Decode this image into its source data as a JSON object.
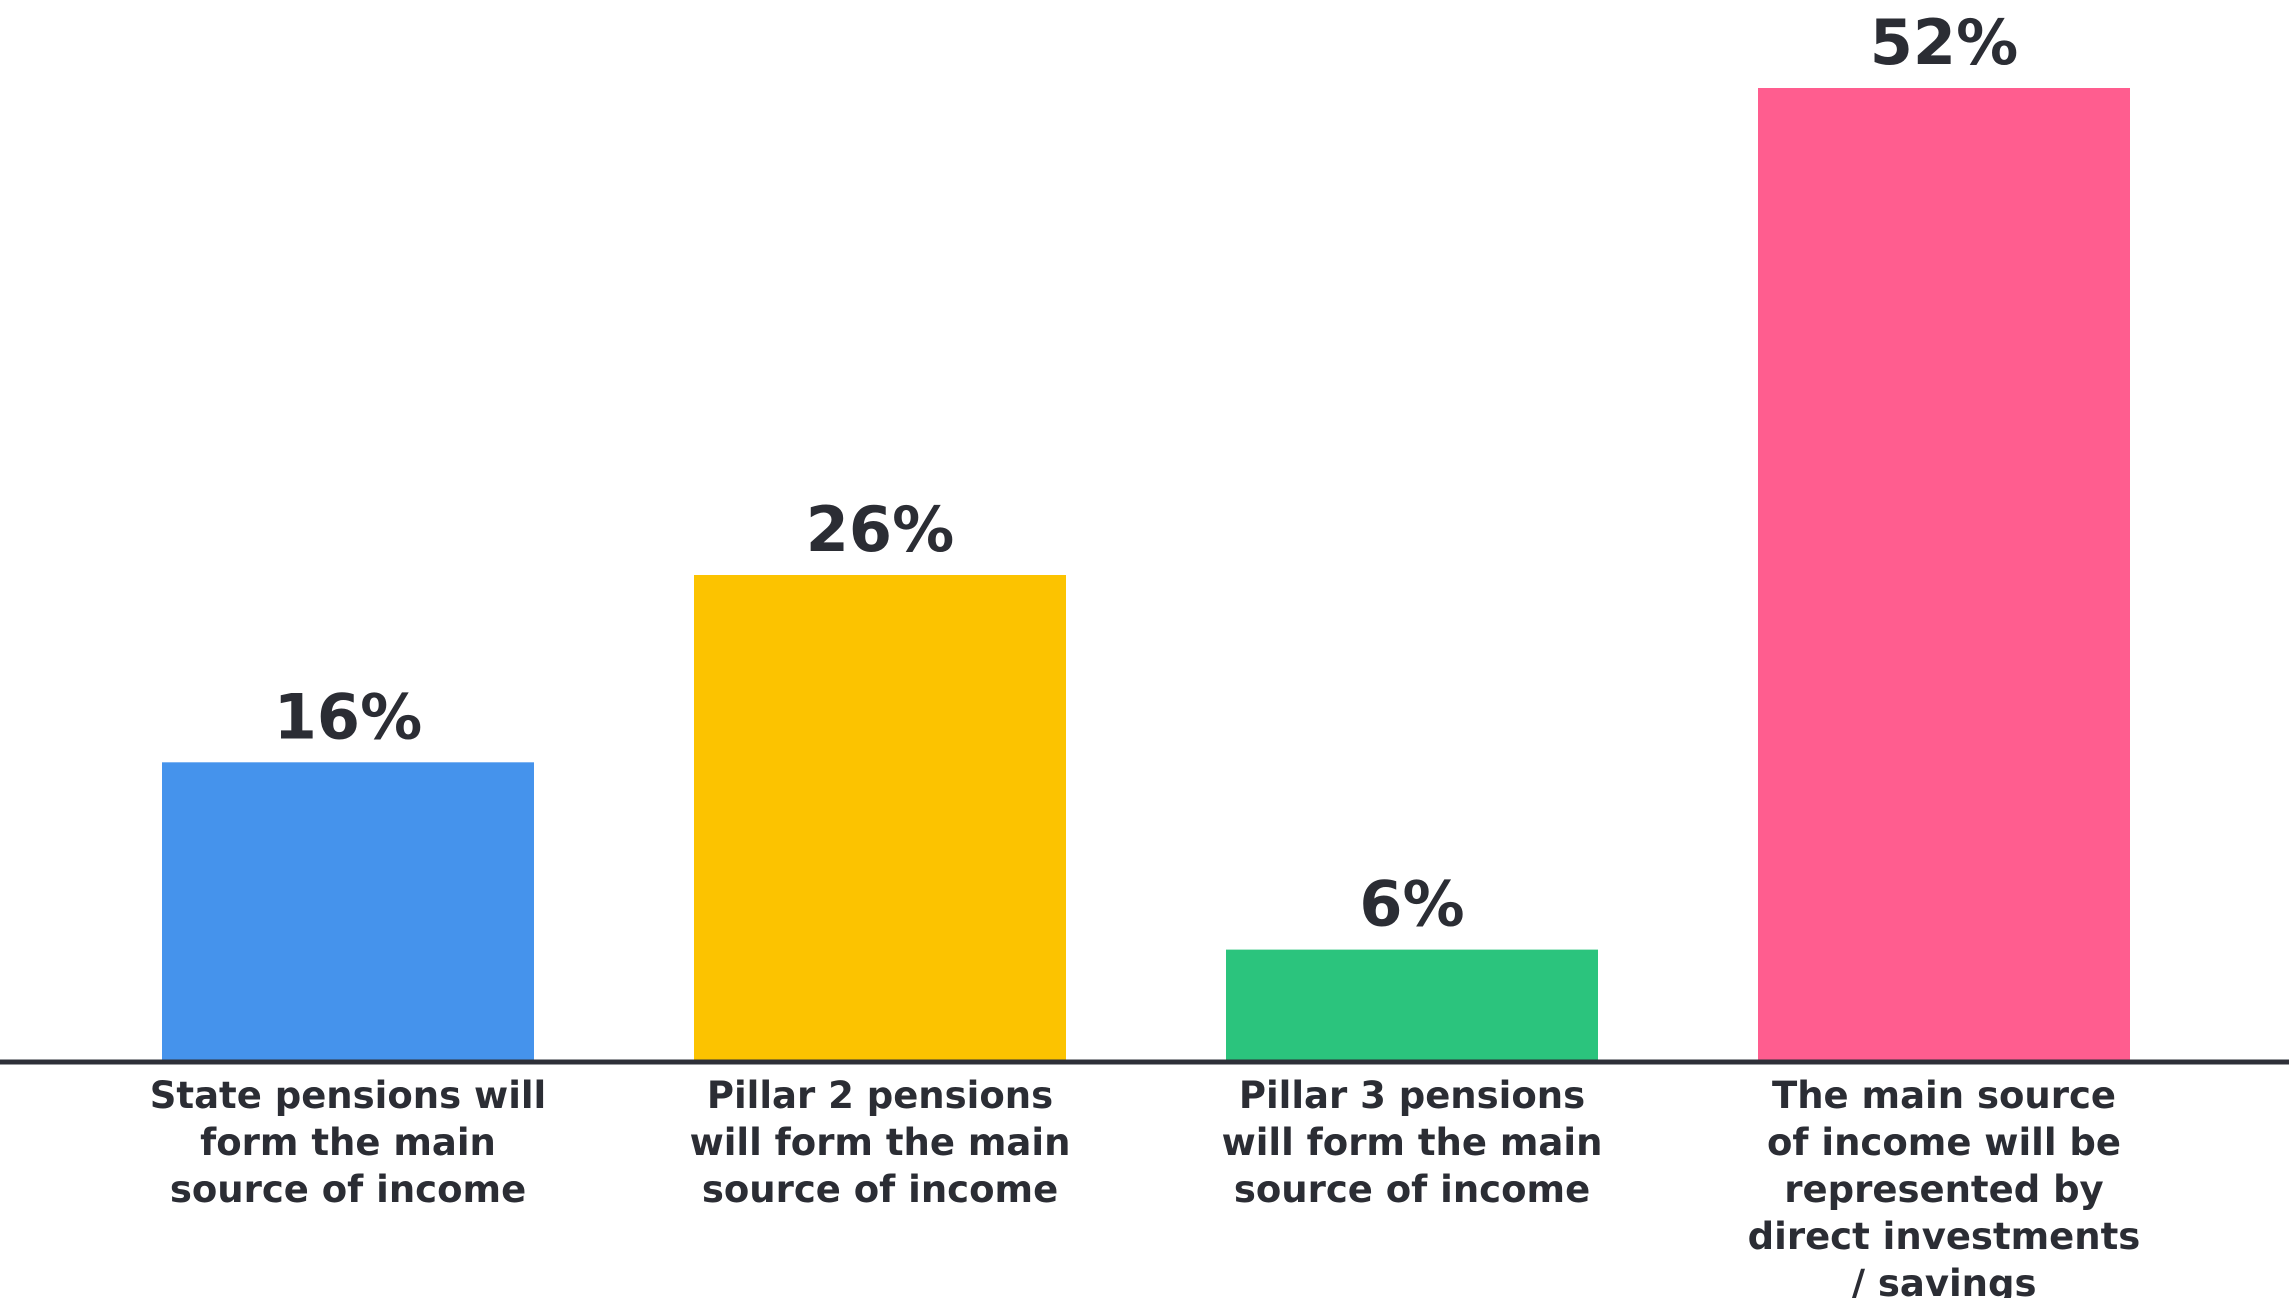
{
  "chart_data": {
    "type": "bar",
    "categories": [
      [
        "State pensions will",
        "form the main",
        "source of income"
      ],
      [
        "Pillar 2 pensions",
        "will form the main",
        "source of income"
      ],
      [
        "Pillar 3 pensions",
        "will form the main",
        "source of income"
      ],
      [
        "The main source",
        "of income will be",
        "represented by",
        "direct investments",
        "/ savings"
      ]
    ],
    "values": [
      16,
      26,
      6,
      52
    ],
    "value_labels": [
      "16%",
      "26%",
      "6%",
      "52%"
    ],
    "colors": [
      "#4593ec",
      "#fcc300",
      "#2bc47d",
      "#ff5d8f"
    ],
    "axis_color": "#2e3038",
    "text_color": "#2b2d34",
    "ylim": [
      0,
      52
    ],
    "grid": false,
    "legend": "none"
  }
}
